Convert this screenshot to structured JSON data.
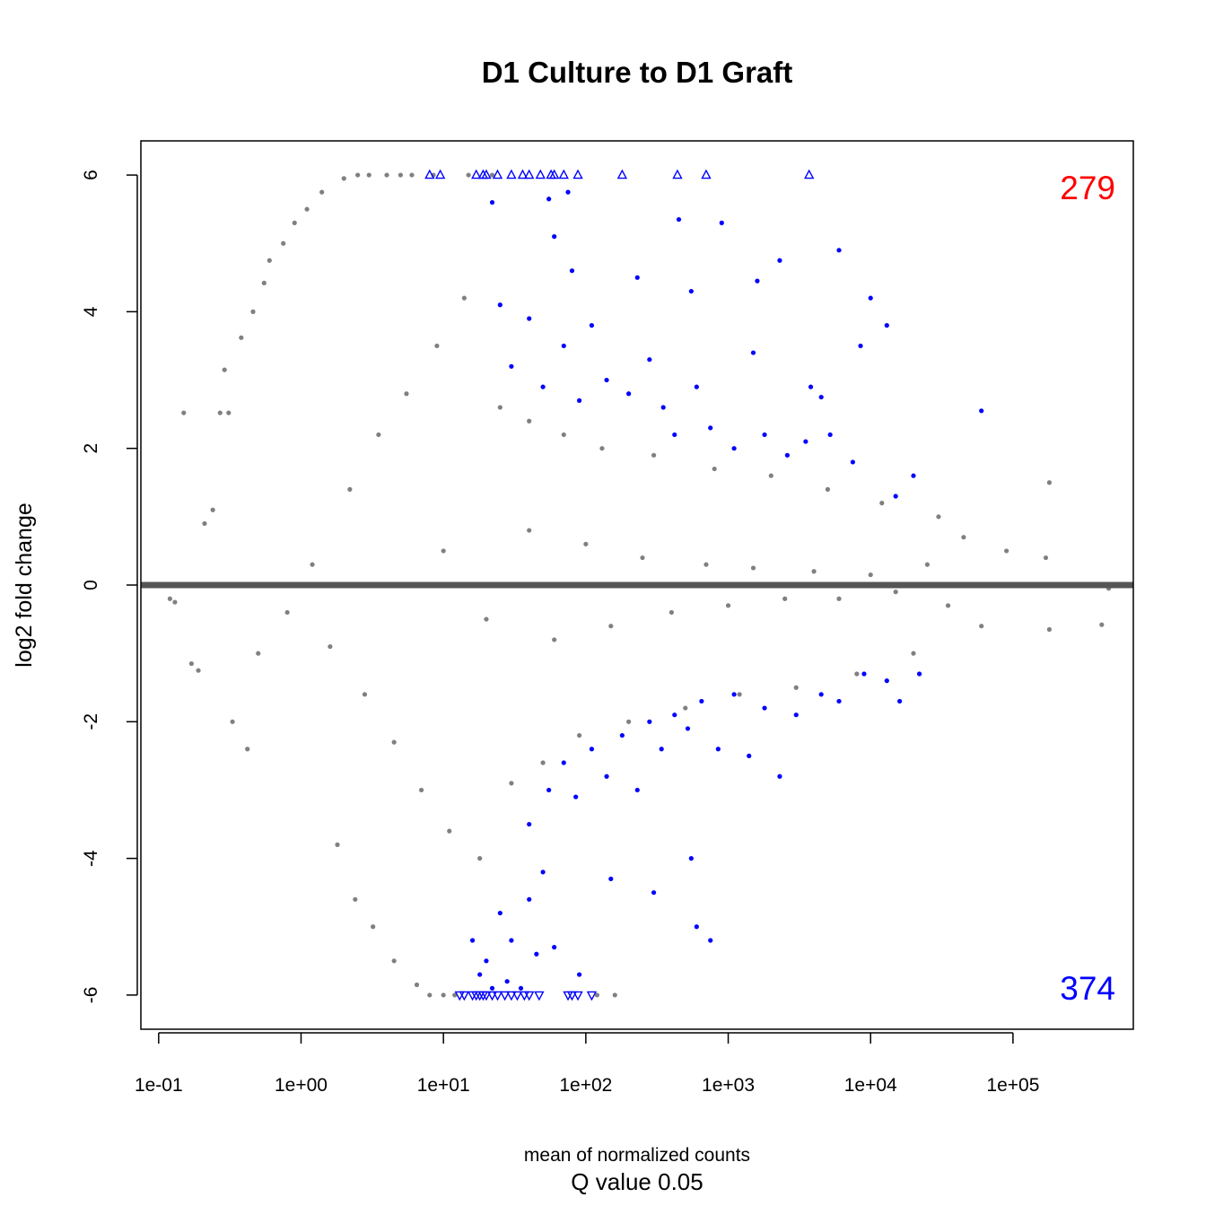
{
  "chart_data": {
    "type": "scatter",
    "title": "D1 Culture to D1 Graft",
    "xlabel": "mean of normalized counts",
    "ylabel": "log2 fold change",
    "subtitle": "Q value 0.05",
    "x_scale": "log10",
    "xlim": [
      0.075,
      700000
    ],
    "ylim": [
      -6.5,
      6.5
    ],
    "x_ticks": [
      0.1,
      1,
      10,
      100,
      1000,
      10000,
      100000
    ],
    "x_tick_labels": [
      "1e-01",
      "1e+00",
      "1e+01",
      "1e+02",
      "1e+03",
      "1e+04",
      "1e+05"
    ],
    "y_ticks": [
      -6,
      -4,
      -2,
      0,
      2,
      4,
      6
    ],
    "y_tick_labels": [
      "-6",
      "-4",
      "-2",
      "0",
      "2",
      "4",
      "6"
    ],
    "reference_line": {
      "y": 0,
      "color": "#555555"
    },
    "up_count": "279",
    "down_count": "374",
    "colors": {
      "not_significant": "#808080",
      "significant": "#0000ff",
      "up_count": "#ff0000",
      "down_count": "#0000ff"
    },
    "series": [
      {
        "name": "not significant",
        "color": "#808080",
        "points": [
          [
            0.15,
            2.52
          ],
          [
            0.27,
            2.52
          ],
          [
            0.31,
            2.52
          ],
          [
            0.17,
            -1.15
          ],
          [
            0.19,
            -1.25
          ],
          [
            0.21,
            0.9
          ],
          [
            0.24,
            1.1
          ],
          [
            0.29,
            3.15
          ],
          [
            0.33,
            -2.0
          ],
          [
            0.38,
            3.62
          ],
          [
            0.42,
            -2.4
          ],
          [
            0.46,
            4.0
          ],
          [
            0.55,
            4.42
          ],
          [
            0.6,
            4.75
          ],
          [
            0.75,
            5.0
          ],
          [
            0.9,
            5.3
          ],
          [
            1.1,
            5.5
          ],
          [
            1.4,
            5.75
          ],
          [
            2.0,
            5.95
          ],
          [
            1.8,
            -3.8
          ],
          [
            2.4,
            -4.6
          ],
          [
            3.2,
            -5.0
          ],
          [
            4.5,
            -5.5
          ],
          [
            6.5,
            -5.85
          ],
          [
            8.0,
            -6.0
          ],
          [
            10.0,
            -6.0
          ],
          [
            12.0,
            -6.0
          ],
          [
            2.5,
            6.0
          ],
          [
            3.0,
            6.0
          ],
          [
            4.0,
            6.0
          ],
          [
            5.0,
            6.0
          ],
          [
            6.0,
            6.0
          ],
          [
            8.5,
            6.0
          ],
          [
            15.0,
            6.0
          ],
          [
            22.0,
            6.0
          ],
          [
            120.0,
            -6.0
          ],
          [
            160.0,
            -6.0
          ],
          [
            0.5,
            -1.0
          ],
          [
            0.8,
            -0.4
          ],
          [
            1.2,
            0.3
          ],
          [
            1.6,
            -0.9
          ],
          [
            2.2,
            1.4
          ],
          [
            2.8,
            -1.6
          ],
          [
            3.5,
            2.2
          ],
          [
            4.5,
            -2.3
          ],
          [
            5.5,
            2.8
          ],
          [
            7.0,
            -3.0
          ],
          [
            9.0,
            3.5
          ],
          [
            11.0,
            -3.6
          ],
          [
            14.0,
            4.2
          ],
          [
            18.0,
            -4.0
          ],
          [
            25.0,
            2.6
          ],
          [
            30.0,
            -2.9
          ],
          [
            40.0,
            2.4
          ],
          [
            50.0,
            -2.6
          ],
          [
            70.0,
            2.2
          ],
          [
            90.0,
            -2.2
          ],
          [
            130.0,
            2.0
          ],
          [
            200.0,
            -2.0
          ],
          [
            300.0,
            1.9
          ],
          [
            500.0,
            -1.8
          ],
          [
            800.0,
            1.7
          ],
          [
            1200.0,
            -1.6
          ],
          [
            2000.0,
            1.6
          ],
          [
            3000.0,
            -1.5
          ],
          [
            5000.0,
            1.4
          ],
          [
            8000.0,
            -1.3
          ],
          [
            12000.0,
            1.2
          ],
          [
            20000.0,
            -1.0
          ],
          [
            30000.0,
            1.0
          ],
          [
            45000.0,
            0.7
          ],
          [
            60000.0,
            -0.6
          ],
          [
            90000.0,
            0.5
          ],
          [
            180000.0,
            1.5
          ],
          [
            170000.0,
            0.4
          ],
          [
            180000.0,
            -0.65
          ],
          [
            420000.0,
            -0.58
          ],
          [
            470000.0,
            -0.05
          ],
          [
            10.0,
            0.5
          ],
          [
            20.0,
            -0.5
          ],
          [
            40.0,
            0.8
          ],
          [
            60.0,
            -0.8
          ],
          [
            100.0,
            0.6
          ],
          [
            150.0,
            -0.6
          ],
          [
            250.0,
            0.4
          ],
          [
            400.0,
            -0.4
          ],
          [
            700.0,
            0.3
          ],
          [
            1000.0,
            -0.3
          ],
          [
            1500.0,
            0.25
          ],
          [
            2500.0,
            -0.2
          ],
          [
            4000.0,
            0.2
          ],
          [
            6000.0,
            -0.2
          ],
          [
            10000.0,
            0.15
          ],
          [
            15000.0,
            -0.1
          ],
          [
            25000.0,
            0.3
          ],
          [
            35000.0,
            -0.3
          ],
          [
            0.12,
            -0.2
          ],
          [
            0.13,
            -0.25
          ]
        ]
      },
      {
        "name": "significant",
        "color": "#0000ff",
        "points": [
          [
            22.0,
            5.6
          ],
          [
            55.0,
            5.65
          ],
          [
            75.0,
            5.75
          ],
          [
            450.0,
            5.35
          ],
          [
            900.0,
            5.3
          ],
          [
            60.0,
            5.1
          ],
          [
            6000.0,
            4.9
          ],
          [
            2300.0,
            4.75
          ],
          [
            1600.0,
            4.45
          ],
          [
            80.0,
            4.6
          ],
          [
            10000.0,
            4.2
          ],
          [
            13000.0,
            3.8
          ],
          [
            4500.0,
            2.75
          ],
          [
            8500.0,
            3.5
          ],
          [
            25.0,
            4.1
          ],
          [
            40.0,
            3.9
          ],
          [
            110.0,
            3.8
          ],
          [
            230.0,
            4.5
          ],
          [
            550.0,
            4.3
          ],
          [
            1500.0,
            3.4
          ],
          [
            3800.0,
            2.9
          ],
          [
            60000.0,
            2.55
          ],
          [
            30.0,
            3.2
          ],
          [
            50.0,
            2.9
          ],
          [
            70.0,
            3.5
          ],
          [
            90.0,
            2.7
          ],
          [
            140.0,
            3.0
          ],
          [
            200.0,
            2.8
          ],
          [
            280.0,
            3.3
          ],
          [
            350.0,
            2.6
          ],
          [
            420.0,
            2.2
          ],
          [
            600.0,
            2.9
          ],
          [
            750.0,
            2.3
          ],
          [
            1100.0,
            2.0
          ],
          [
            1800.0,
            2.2
          ],
          [
            2600.0,
            1.9
          ],
          [
            3500.0,
            2.1
          ],
          [
            5200.0,
            2.2
          ],
          [
            7500.0,
            1.8
          ],
          [
            15000.0,
            1.3
          ],
          [
            20000.0,
            1.6
          ],
          [
            25.0,
            -4.8
          ],
          [
            30.0,
            -5.2
          ],
          [
            40.0,
            -4.6
          ],
          [
            50.0,
            -4.2
          ],
          [
            60.0,
            -5.3
          ],
          [
            90.0,
            -5.7
          ],
          [
            150.0,
            -4.3
          ],
          [
            300.0,
            -4.5
          ],
          [
            550.0,
            -4.0
          ],
          [
            600.0,
            -5.0
          ],
          [
            750.0,
            -5.2
          ],
          [
            40.0,
            -3.5
          ],
          [
            55.0,
            -3.0
          ],
          [
            70.0,
            -2.6
          ],
          [
            85.0,
            -3.1
          ],
          [
            110.0,
            -2.4
          ],
          [
            140.0,
            -2.8
          ],
          [
            180.0,
            -2.2
          ],
          [
            230.0,
            -3.0
          ],
          [
            280.0,
            -2.0
          ],
          [
            340.0,
            -2.4
          ],
          [
            420.0,
            -1.9
          ],
          [
            520.0,
            -2.1
          ],
          [
            650.0,
            -1.7
          ],
          [
            850.0,
            -2.4
          ],
          [
            1100.0,
            -1.6
          ],
          [
            1400.0,
            -2.5
          ],
          [
            1800.0,
            -1.8
          ],
          [
            2300.0,
            -2.8
          ],
          [
            3000.0,
            -1.9
          ],
          [
            4500.0,
            -1.6
          ],
          [
            6000.0,
            -1.7
          ],
          [
            9000.0,
            -1.3
          ],
          [
            13000.0,
            -1.4
          ],
          [
            16000.0,
            -1.7
          ],
          [
            22000.0,
            -1.3
          ],
          [
            18.0,
            -5.7
          ],
          [
            22.0,
            -5.9
          ],
          [
            28.0,
            -5.8
          ],
          [
            35.0,
            -5.9
          ],
          [
            16.0,
            -5.2
          ],
          [
            20.0,
            -5.5
          ],
          [
            45.0,
            -5.4
          ]
        ]
      },
      {
        "name": "up capped",
        "color": "#0000ff",
        "marker": "triangle-up",
        "points": [
          [
            8.0,
            6.0
          ],
          [
            9.5,
            6.0
          ],
          [
            17.0,
            6.0
          ],
          [
            19.0,
            6.0
          ],
          [
            20.0,
            6.0
          ],
          [
            24.0,
            6.0
          ],
          [
            30.0,
            6.0
          ],
          [
            36.0,
            6.0
          ],
          [
            40.0,
            6.0
          ],
          [
            48.0,
            6.0
          ],
          [
            57.0,
            6.0
          ],
          [
            60.0,
            6.0
          ],
          [
            70.0,
            6.0
          ],
          [
            88.0,
            6.0
          ],
          [
            180.0,
            6.0
          ],
          [
            440.0,
            6.0
          ],
          [
            700.0,
            6.0
          ],
          [
            3700.0,
            6.0
          ]
        ]
      },
      {
        "name": "down capped",
        "color": "#0000ff",
        "marker": "triangle-down",
        "points": [
          [
            13.0,
            -6.0
          ],
          [
            14.0,
            -6.0
          ],
          [
            16.0,
            -6.0
          ],
          [
            17.0,
            -6.0
          ],
          [
            18.0,
            -6.0
          ],
          [
            19.0,
            -6.0
          ],
          [
            20.0,
            -6.0
          ],
          [
            22.0,
            -6.0
          ],
          [
            24.0,
            -6.0
          ],
          [
            27.0,
            -6.0
          ],
          [
            30.0,
            -6.0
          ],
          [
            33.0,
            -6.0
          ],
          [
            37.0,
            -6.0
          ],
          [
            40.0,
            -6.0
          ],
          [
            47.0,
            -6.0
          ],
          [
            75.0,
            -6.0
          ],
          [
            80.0,
            -6.0
          ],
          [
            88.0,
            -6.0
          ],
          [
            110.0,
            -6.0
          ]
        ]
      }
    ]
  }
}
